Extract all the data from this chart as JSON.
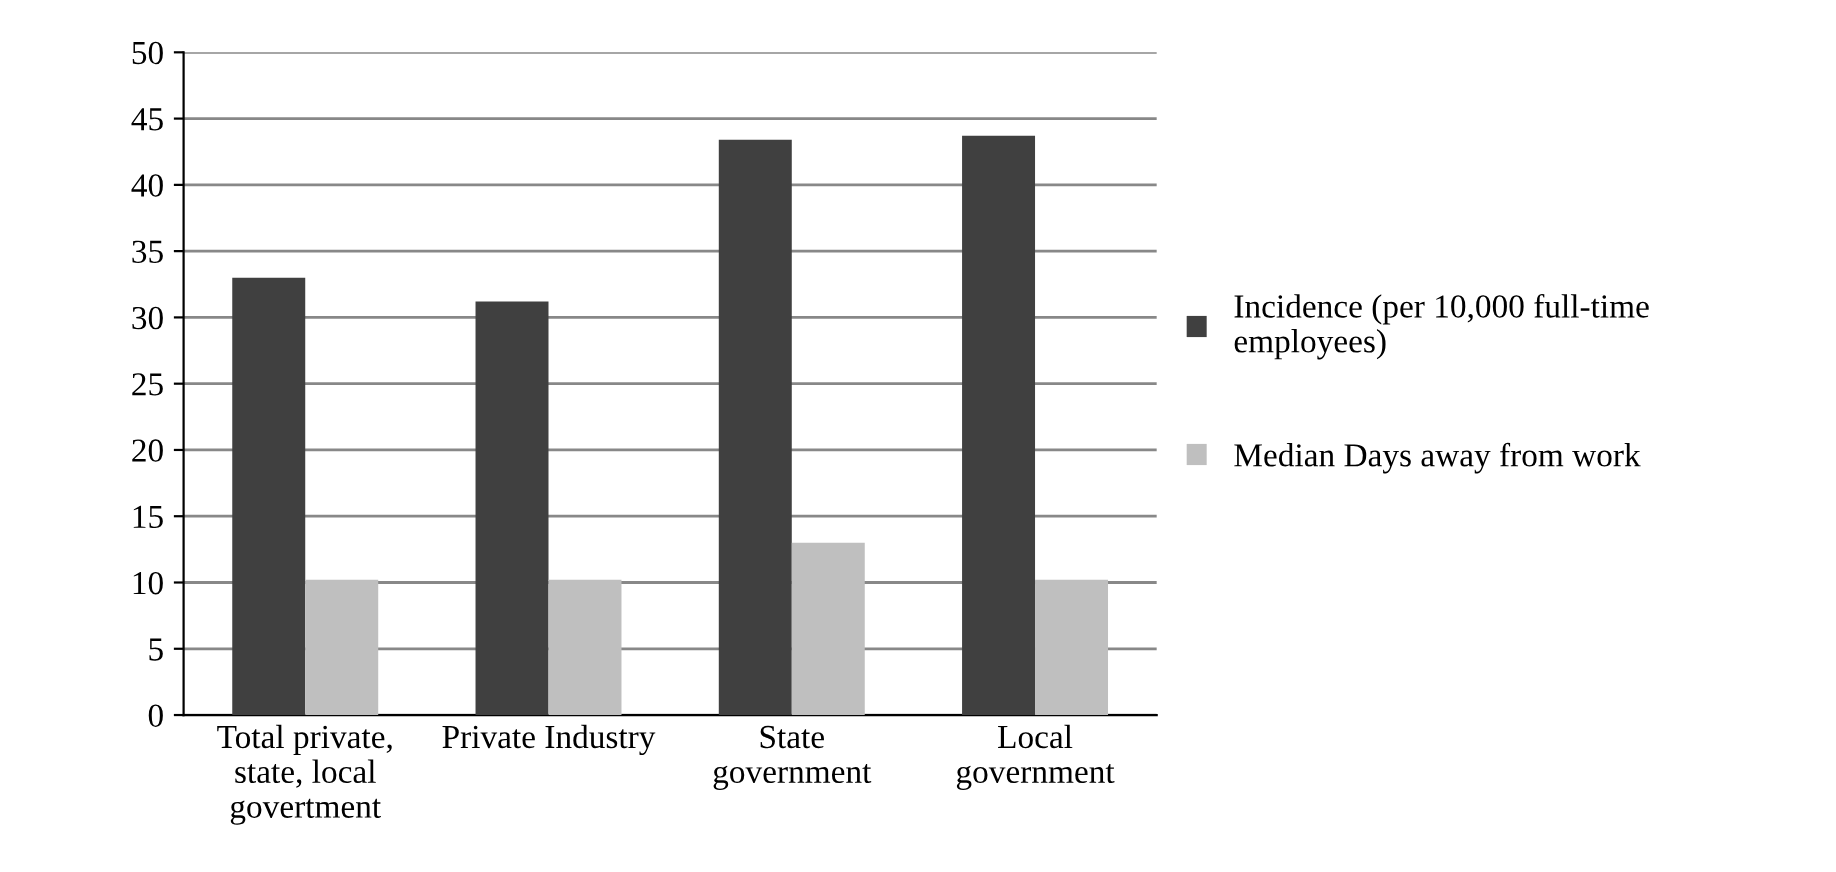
{
  "chart_data": {
    "type": "bar",
    "categories": [
      "Total private,\nstate, local\ngovertment",
      "Private Industry",
      "State\ngovernment",
      "Local\ngovernment"
    ],
    "series": [
      {
        "name": "Incidence (per 10,000 full-time\nemployees)",
        "color": "#404040",
        "values": [
          33,
          31.2,
          43.4,
          43.7
        ]
      },
      {
        "name": "Median Days away from work",
        "color": "#bfbfbf",
        "values": [
          10.2,
          10.2,
          13,
          10.2
        ]
      }
    ],
    "ylim": [
      0,
      50
    ],
    "yticks": [
      0,
      5,
      10,
      15,
      20,
      25,
      30,
      35,
      40,
      45,
      50
    ],
    "grid": "y",
    "legend": "right"
  }
}
